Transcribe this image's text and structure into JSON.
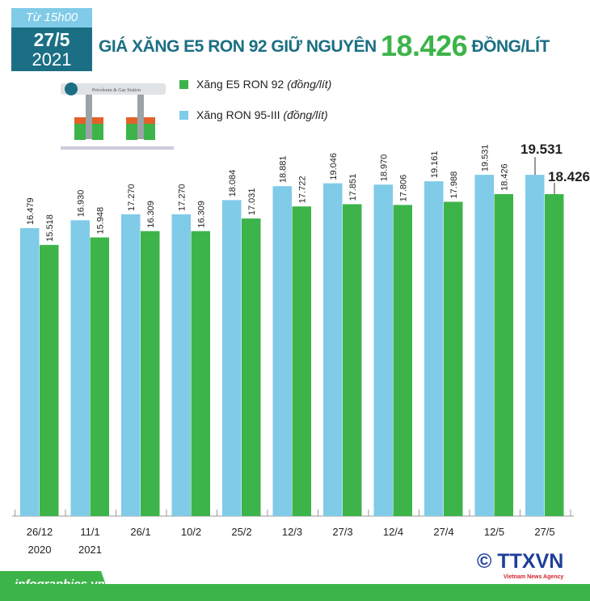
{
  "header": {
    "time_label": "Từ 15h00",
    "date": "27/5",
    "year": "2021",
    "title_prefix": "GIÁ XĂNG E5 RON 92 GIỮ NGUYÊN",
    "title_value": "18.426",
    "title_suffix": "ĐỒNG/LÍT"
  },
  "station_sign": "Petroleum & Gas Station",
  "legend": [
    {
      "name": "Xăng E5 RON 92",
      "unit": "(đồng/lít)",
      "color": "#3db449"
    },
    {
      "name": "Xăng RON 95-III",
      "unit": "(đồng/lít)",
      "color": "#7fcbe8"
    }
  ],
  "footer": {
    "site": "infographics.vn",
    "copyright": "©",
    "logo": "TTXVN",
    "logo_sub": "Vietnam News Agency"
  },
  "chart_data": {
    "type": "bar",
    "categories": [
      "26/12",
      "11/1",
      "26/1",
      "10/2",
      "25/2",
      "12/3",
      "27/3",
      "12/4",
      "27/4",
      "12/5",
      "27/5"
    ],
    "category_sublabels": [
      "2020",
      "2021",
      "",
      "",
      "",
      "",
      "",
      "",
      "",
      "",
      ""
    ],
    "series": [
      {
        "name": "Xăng RON 95-III",
        "color": "#7fcbe8",
        "values": [
          16479,
          16930,
          17270,
          17270,
          18084,
          18881,
          19046,
          18970,
          19161,
          19531,
          19531
        ],
        "labels": [
          "16.479",
          "16.930",
          "17.270",
          "17.270",
          "18.084",
          "18.881",
          "19.046",
          "18.970",
          "19.161",
          "19.531",
          "19.531"
        ]
      },
      {
        "name": "Xăng E5 RON 92",
        "color": "#3db449",
        "values": [
          15518,
          15948,
          16309,
          16309,
          17031,
          17722,
          17851,
          17806,
          17988,
          18426,
          18426
        ],
        "labels": [
          "15.518",
          "15.948",
          "16.309",
          "16.309",
          "17.031",
          "17.722",
          "17.851",
          "17.806",
          "17.988",
          "18.426",
          "18.426"
        ]
      }
    ],
    "ylim": [
      0,
      20000
    ],
    "xlabel": "",
    "ylabel": "",
    "grid": false
  }
}
